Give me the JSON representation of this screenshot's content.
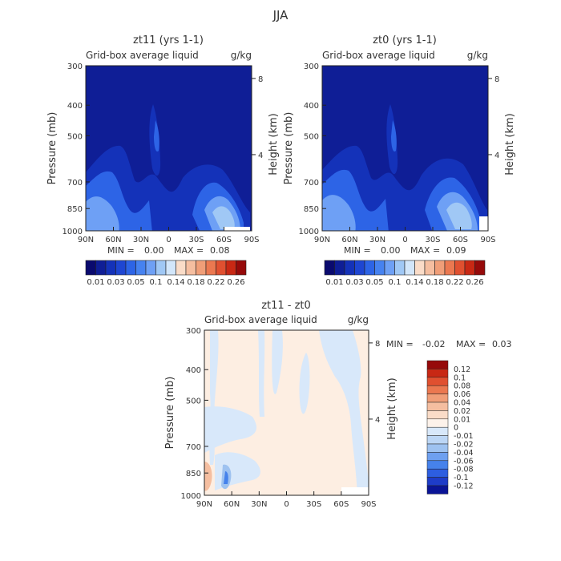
{
  "figure_title": "JJA",
  "chart_data": [
    {
      "type": "contour",
      "title": "zt11 (yrs 1-1)",
      "subtitle_left": "Grid-box average liquid",
      "subtitle_right": "g/kg",
      "xlabel": "",
      "ylabel": "Pressure (mb)",
      "y2label": "Height (km)",
      "xticks": [
        "90N",
        "60N",
        "30N",
        "0",
        "30S",
        "60S",
        "90S"
      ],
      "yticks": [
        "300",
        "400",
        "500",
        "700",
        "850",
        "1000"
      ],
      "y2ticks": [
        "8",
        "4"
      ],
      "ylim": [
        1000,
        300
      ],
      "stats": {
        "min_label": "MIN =",
        "min": "0.00",
        "max_label": "MAX =",
        "max": "0.08"
      },
      "colorbar": {
        "colors": [
          "#0a0a6e",
          "#0f1e96",
          "#1432b9",
          "#1e46d2",
          "#2d64e6",
          "#4682f0",
          "#6ea0f5",
          "#a0c8f5",
          "#d2e6fa",
          "#fadcc8",
          "#f5bea0",
          "#f09e78",
          "#eb7850",
          "#e05030",
          "#c82814",
          "#960a0a"
        ],
        "tick_labels": [
          "0.01",
          "0.03",
          "0.05",
          "0.1",
          "0.14",
          "0.18",
          "0.22",
          "0.26"
        ]
      }
    },
    {
      "type": "contour",
      "title": "zt0 (yrs 1-1)",
      "subtitle_left": "Grid-box average liquid",
      "subtitle_right": "g/kg",
      "xlabel": "",
      "ylabel": "Pressure (mb)",
      "y2label": "Height (km)",
      "xticks": [
        "90N",
        "60N",
        "30N",
        "0",
        "30S",
        "60S",
        "90S"
      ],
      "yticks": [
        "300",
        "400",
        "500",
        "700",
        "850",
        "1000"
      ],
      "y2ticks": [
        "8",
        "4"
      ],
      "ylim": [
        1000,
        300
      ],
      "stats": {
        "min_label": "MIN =",
        "min": "0.00",
        "max_label": "MAX =",
        "max": "0.09"
      },
      "colorbar": {
        "colors": [
          "#0a0a6e",
          "#0f1e96",
          "#1432b9",
          "#1e46d2",
          "#2d64e6",
          "#4682f0",
          "#6ea0f5",
          "#a0c8f5",
          "#d2e6fa",
          "#fadcc8",
          "#f5bea0",
          "#f09e78",
          "#eb7850",
          "#e05030",
          "#c82814",
          "#960a0a"
        ],
        "tick_labels": [
          "0.01",
          "0.03",
          "0.05",
          "0.1",
          "0.14",
          "0.18",
          "0.22",
          "0.26"
        ]
      }
    },
    {
      "type": "contour",
      "title": "zt11 - zt0",
      "subtitle_left": "Grid-box average liquid",
      "subtitle_right": "g/kg",
      "xlabel": "",
      "ylabel": "Pressure (mb)",
      "y2label": "Height (km)",
      "xticks": [
        "90N",
        "60N",
        "30N",
        "0",
        "30S",
        "60S",
        "90S"
      ],
      "yticks": [
        "300",
        "400",
        "500",
        "700",
        "850",
        "1000"
      ],
      "y2ticks": [
        "8",
        "4"
      ],
      "ylim": [
        1000,
        300
      ],
      "stats": {
        "min_label": "MIN =",
        "min": "-0.02",
        "max_label": "MAX =",
        "max": "0.03"
      },
      "colorbar": {
        "colors": [
          "#960a0a",
          "#c82814",
          "#e05030",
          "#eb7850",
          "#f09e78",
          "#f5bea0",
          "#fadcc8",
          "#fdf2ea",
          "#d8e8fa",
          "#bcd6f5",
          "#9ec2f0",
          "#6ea0f0",
          "#4682eb",
          "#2d5ee0",
          "#1e3cc8",
          "#0a1496"
        ],
        "tick_labels": [
          "0.12",
          "0.1",
          "0.08",
          "0.06",
          "0.04",
          "0.02",
          "0.01",
          "0",
          "-0.01",
          "-0.02",
          "-0.04",
          "-0.06",
          "-0.08",
          "-0.1",
          "-0.12"
        ]
      }
    }
  ]
}
